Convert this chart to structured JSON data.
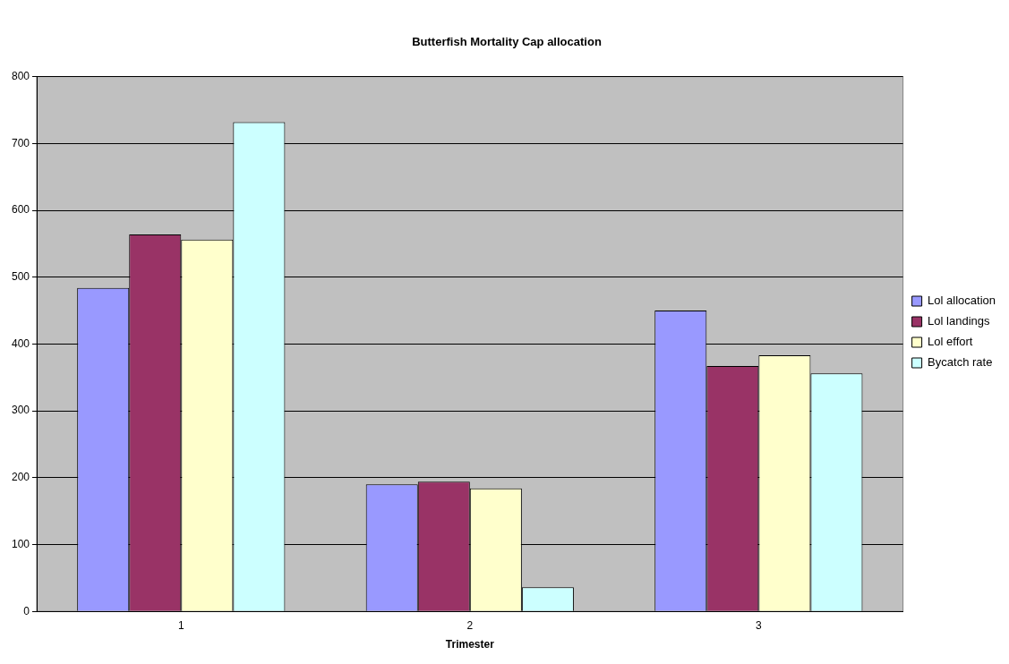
{
  "chart_data": {
    "type": "bar",
    "title": "Butterfish Mortality Cap allocation",
    "xlabel": "Trimester",
    "categories": [
      "1",
      "2",
      "3"
    ],
    "series": [
      {
        "name": "Lol allocation",
        "color": "#9999ff",
        "values": [
          484,
          190,
          450
        ]
      },
      {
        "name": "Lol landings",
        "color": "#993366",
        "values": [
          564,
          194,
          367
        ]
      },
      {
        "name": "Lol effort",
        "color": "#ffffcc",
        "values": [
          556,
          184,
          383
        ]
      },
      {
        "name": "Bycatch rate",
        "color": "#ccffff",
        "values": [
          732,
          36,
          356
        ]
      }
    ],
    "ylim": [
      0,
      800
    ],
    "yticks": [
      0,
      100,
      200,
      300,
      400,
      500,
      600,
      700,
      800
    ],
    "grid": "y",
    "legend": "right"
  }
}
